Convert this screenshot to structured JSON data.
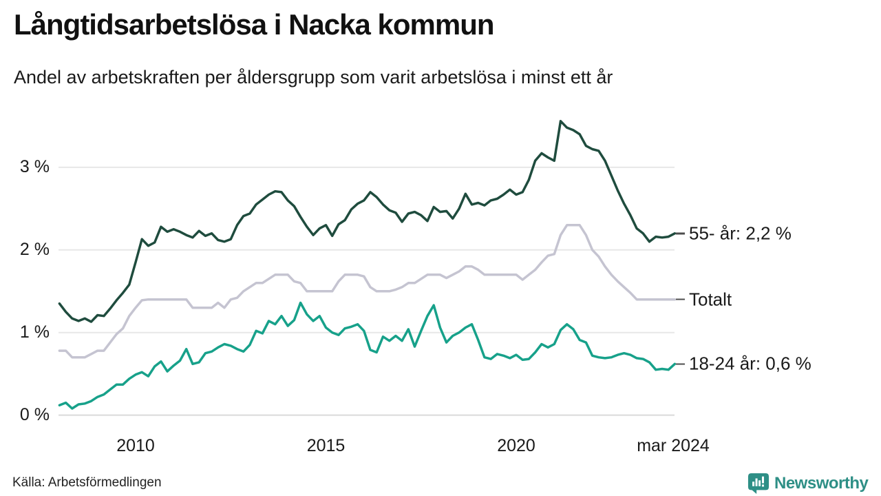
{
  "header": {
    "title": "Långtidsarbetslösa i Nacka kommun",
    "subtitle": "Andel av arbetskraften per åldersgrupp som varit arbetslösa i minst ett år"
  },
  "footer": {
    "source": "Källa: Arbetsförmedlingen",
    "brand": "Newsworthy"
  },
  "colors": {
    "series_55": "#1f4c3e",
    "series_total": "#c5c4d1",
    "series_18_24": "#17a18a",
    "grid": "#e7e7e7",
    "axis_zero": "#d9d9d9",
    "brand_teal": "#2e8f86",
    "text": "#1a1a1a",
    "annotation_dash": "#4d4d4d"
  },
  "chart_data": {
    "type": "line",
    "title": "Långtidsarbetslösa i Nacka kommun",
    "subtitle": "Andel av arbetskraften per åldersgrupp som varit arbetslösa i minst ett år",
    "x_unit": "decimal_year",
    "x_start": 2008.0,
    "x_end": 2024.1667,
    "points_per_year": 6,
    "grid": true,
    "legend_position": "right-annotations",
    "x_ticks": [
      {
        "value": 2010,
        "label": "2010"
      },
      {
        "value": 2015,
        "label": "2015"
      },
      {
        "value": 2020,
        "label": "2020"
      },
      {
        "value": 2024.1667,
        "label": "mar 2024"
      }
    ],
    "y_axis": {
      "range": [
        0,
        3.7
      ],
      "ticks": [
        {
          "value": 3,
          "label": "3 %"
        },
        {
          "value": 2,
          "label": "2 %"
        },
        {
          "value": 1,
          "label": "1 %"
        },
        {
          "value": 0,
          "label": "0 %"
        }
      ]
    },
    "series": [
      {
        "id": "55",
        "name": "55- år",
        "annotation": "55- år: 2,2 %",
        "last_value": 2.2,
        "color_key": "series_55",
        "values": [
          1.35,
          1.25,
          1.17,
          1.14,
          1.17,
          1.13,
          1.21,
          1.2,
          1.29,
          1.39,
          1.48,
          1.58,
          1.85,
          2.13,
          2.05,
          2.09,
          2.28,
          2.22,
          2.25,
          2.22,
          2.18,
          2.15,
          2.23,
          2.17,
          2.2,
          2.12,
          2.1,
          2.13,
          2.3,
          2.41,
          2.44,
          2.55,
          2.61,
          2.67,
          2.71,
          2.7,
          2.6,
          2.53,
          2.4,
          2.28,
          2.18,
          2.26,
          2.3,
          2.17,
          2.31,
          2.36,
          2.49,
          2.56,
          2.6,
          2.7,
          2.64,
          2.55,
          2.48,
          2.45,
          2.34,
          2.44,
          2.46,
          2.42,
          2.35,
          2.52,
          2.46,
          2.47,
          2.38,
          2.5,
          2.68,
          2.55,
          2.57,
          2.54,
          2.6,
          2.62,
          2.67,
          2.73,
          2.67,
          2.7,
          2.85,
          3.08,
          3.17,
          3.12,
          3.08,
          3.56,
          3.48,
          3.45,
          3.4,
          3.26,
          3.22,
          3.2,
          3.08,
          2.9,
          2.72,
          2.56,
          2.42,
          2.26,
          2.2,
          2.1,
          2.16,
          2.15,
          2.16,
          2.2
        ]
      },
      {
        "id": "total",
        "name": "Totalt",
        "annotation": "Totalt",
        "last_value": 1.4,
        "color_key": "series_total",
        "values": [
          0.78,
          0.78,
          0.7,
          0.7,
          0.7,
          0.74,
          0.78,
          0.78,
          0.88,
          0.98,
          1.05,
          1.2,
          1.3,
          1.39,
          1.4,
          1.4,
          1.4,
          1.4,
          1.4,
          1.4,
          1.4,
          1.3,
          1.3,
          1.3,
          1.3,
          1.36,
          1.3,
          1.4,
          1.42,
          1.5,
          1.55,
          1.6,
          1.6,
          1.65,
          1.7,
          1.7,
          1.7,
          1.62,
          1.6,
          1.5,
          1.5,
          1.5,
          1.5,
          1.5,
          1.62,
          1.7,
          1.7,
          1.7,
          1.68,
          1.55,
          1.5,
          1.5,
          1.5,
          1.52,
          1.55,
          1.6,
          1.6,
          1.65,
          1.7,
          1.7,
          1.7,
          1.66,
          1.7,
          1.74,
          1.8,
          1.8,
          1.76,
          1.7,
          1.7,
          1.7,
          1.7,
          1.7,
          1.7,
          1.64,
          1.7,
          1.76,
          1.85,
          1.93,
          1.95,
          2.18,
          2.3,
          2.3,
          2.3,
          2.18,
          2.0,
          1.92,
          1.8,
          1.7,
          1.62,
          1.55,
          1.48,
          1.4,
          1.4,
          1.4,
          1.4,
          1.4,
          1.4,
          1.4
        ]
      },
      {
        "id": "18-24",
        "name": "18-24 år",
        "annotation": "18-24 år: 0,6 %",
        "last_value": 0.6,
        "color_key": "series_18_24",
        "values": [
          0.12,
          0.15,
          0.08,
          0.13,
          0.14,
          0.17,
          0.22,
          0.25,
          0.31,
          0.37,
          0.37,
          0.44,
          0.49,
          0.52,
          0.47,
          0.59,
          0.65,
          0.53,
          0.6,
          0.66,
          0.8,
          0.62,
          0.64,
          0.75,
          0.77,
          0.82,
          0.86,
          0.84,
          0.8,
          0.77,
          0.85,
          1.02,
          0.99,
          1.14,
          1.1,
          1.2,
          1.08,
          1.15,
          1.36,
          1.22,
          1.14,
          1.2,
          1.06,
          1.0,
          0.97,
          1.05,
          1.07,
          1.1,
          1.02,
          0.79,
          0.76,
          0.95,
          0.9,
          0.96,
          0.9,
          1.04,
          0.83,
          1.02,
          1.2,
          1.33,
          1.06,
          0.88,
          0.96,
          1.0,
          1.06,
          1.1,
          0.91,
          0.7,
          0.68,
          0.74,
          0.72,
          0.69,
          0.73,
          0.67,
          0.68,
          0.76,
          0.86,
          0.82,
          0.86,
          1.03,
          1.1,
          1.04,
          0.91,
          0.88,
          0.72,
          0.7,
          0.69,
          0.7,
          0.73,
          0.75,
          0.73,
          0.69,
          0.68,
          0.64,
          0.55,
          0.56,
          0.55,
          0.62
        ]
      }
    ]
  }
}
